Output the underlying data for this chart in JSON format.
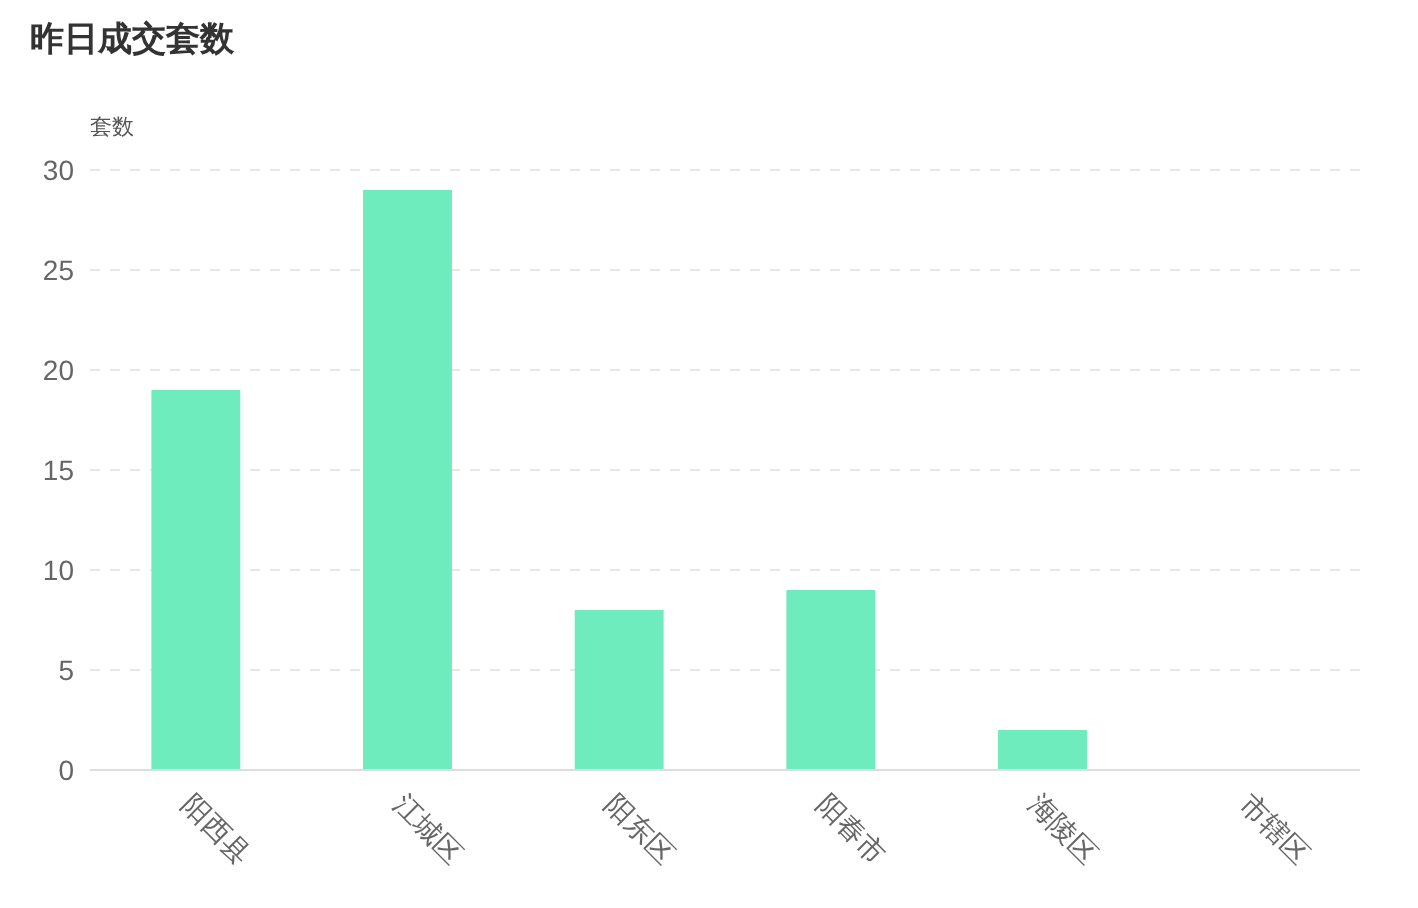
{
  "chart_data": {
    "type": "bar",
    "title": "昨日成交套数",
    "ylabel": "套数",
    "categories": [
      "阳西县",
      "江城区",
      "阳东区",
      "阳春市",
      "海陵区",
      "市辖区"
    ],
    "values": [
      19,
      29,
      8,
      9,
      2,
      0
    ],
    "color": "#6eecbe",
    "ylim": [
      0,
      30
    ],
    "yticks": [
      0,
      5,
      10,
      15,
      20,
      25,
      30
    ],
    "grid": "y",
    "line_style": "dashed"
  }
}
